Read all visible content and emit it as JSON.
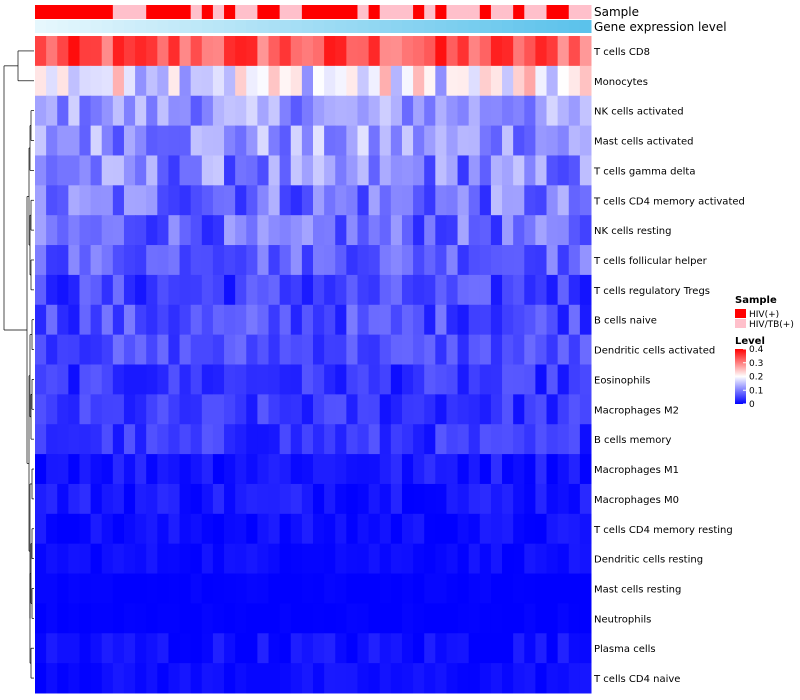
{
  "chart_data": {
    "type": "heatmap",
    "title": "",
    "annotations": {
      "sample_label": "Sample",
      "expression_label": "Gene expression level",
      "sample_groups": [
        "HIV(+)",
        "HIV/TB(+)"
      ],
      "sample_colors": {
        "HIV(+)": "#ff0000",
        "HIV/TB(+)": "#ffc0cb"
      },
      "sample_per_column": [
        0,
        0,
        0,
        0,
        0,
        0,
        0,
        1,
        1,
        1,
        0,
        0,
        0,
        0,
        1,
        0,
        1,
        0,
        1,
        1,
        0,
        0,
        1,
        1,
        0,
        0,
        0,
        0,
        0,
        1,
        0,
        1,
        1,
        1,
        0,
        1,
        0,
        1,
        1,
        1,
        0,
        1,
        1,
        0,
        1,
        1,
        0,
        0,
        1,
        1
      ],
      "expression_gradient": [
        "#e6f7fd",
        "#5bc2eb"
      ]
    },
    "rows": [
      "T cells CD8",
      "Monocytes",
      "NK cells activated",
      "Mast cells activated",
      "T cells gamma delta",
      "T cells CD4 memory activated",
      "NK cells resting",
      "T cells follicular helper",
      "T cells regulatory  Tregs",
      "B cells naive",
      "Dendritic cells activated",
      "Eosinophils",
      "Macrophages M2",
      "B cells memory",
      "Macrophages M1",
      "Macrophages M0",
      "T cells CD4 memory resting",
      "Dendritic cells resting",
      "Mast cells resting",
      "Neutrophils",
      "Plasma cells",
      "T cells CD4 naive"
    ],
    "n_columns": 50,
    "value_range": [
      0,
      0.4
    ],
    "row_mean_values": [
      0.33,
      0.19,
      0.12,
      0.12,
      0.1,
      0.09,
      0.08,
      0.08,
      0.05,
      0.06,
      0.06,
      0.04,
      0.04,
      0.04,
      0.02,
      0.02,
      0.01,
      0.01,
      0.0,
      0.0,
      0.01,
      0.01
    ],
    "row_spread": [
      0.06,
      0.08,
      0.05,
      0.06,
      0.06,
      0.06,
      0.05,
      0.04,
      0.04,
      0.04,
      0.03,
      0.03,
      0.03,
      0.03,
      0.02,
      0.02,
      0.015,
      0.01,
      0.005,
      0.005,
      0.02,
      0.01
    ],
    "legend": {
      "sample_title": "Sample",
      "level_title": "Level",
      "level_ticks": [
        "0.4",
        "0.3",
        "0.2",
        "0.1",
        "0"
      ],
      "level_tick_values": [
        0.4,
        0.3,
        0.2,
        0.1,
        0
      ],
      "color_low": "#0000ff",
      "color_mid": "#ffffff",
      "color_high": "#ff0000"
    }
  }
}
